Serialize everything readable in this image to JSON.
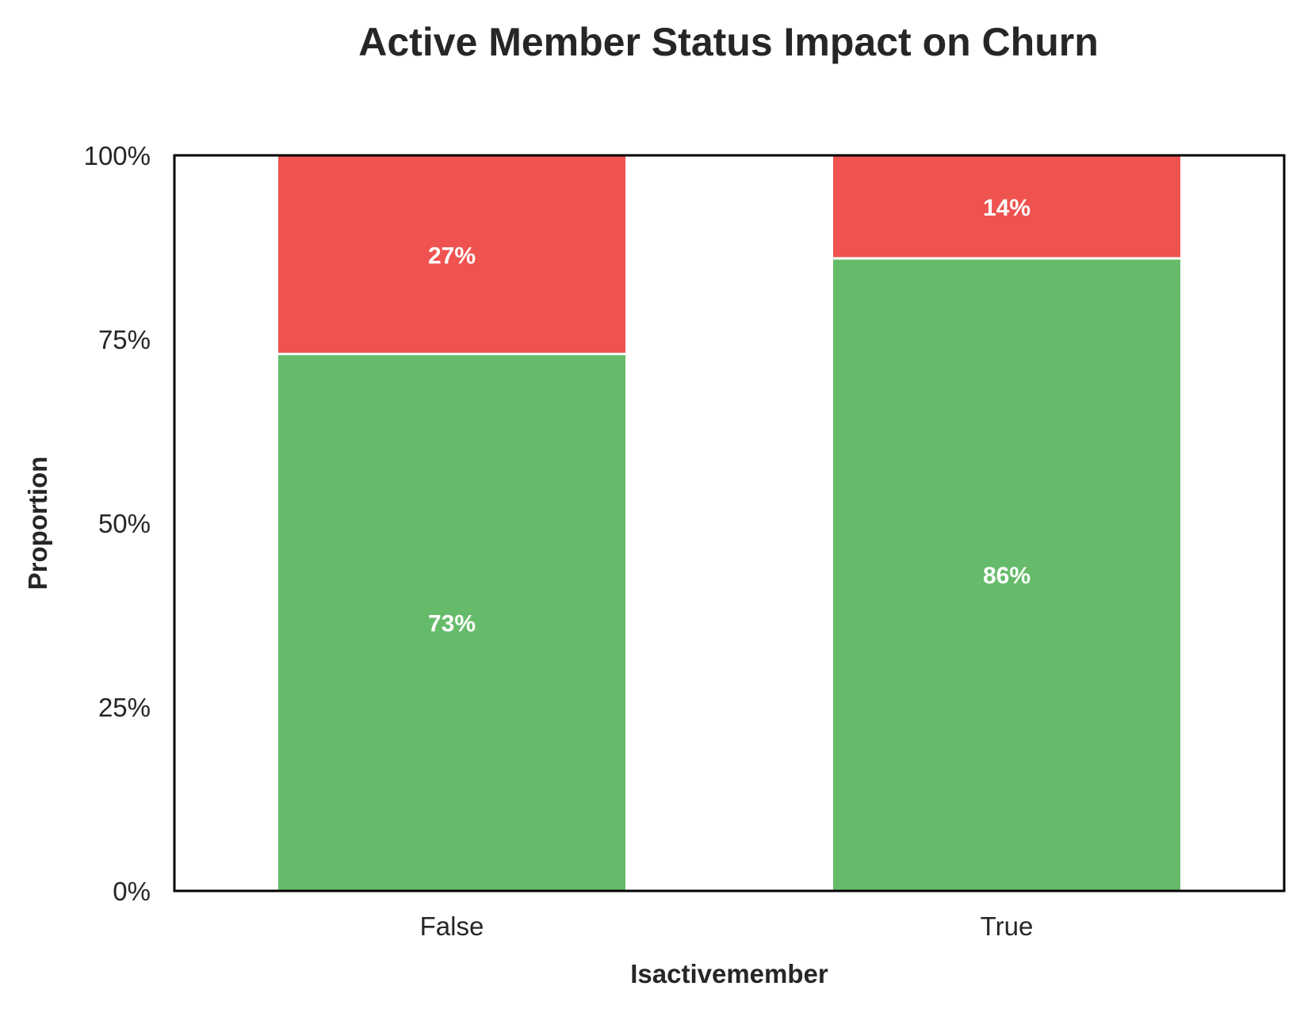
{
  "chart_data": {
    "type": "bar",
    "stacked": true,
    "normalized": true,
    "title": "Active Member Status Impact on Churn",
    "xlabel": "Isactivemember",
    "ylabel": "Proportion",
    "categories": [
      "False",
      "True"
    ],
    "ylim": [
      0,
      1
    ],
    "yticks": [
      0,
      0.25,
      0.5,
      0.75,
      1.0
    ],
    "ytick_labels": [
      "0%",
      "25%",
      "50%",
      "75%",
      "100%"
    ],
    "grid": false,
    "legend": false,
    "series": [
      {
        "values": [
          0.73,
          0.86
        ],
        "labels": [
          "73%",
          "86%"
        ],
        "color": "#66bb6a"
      },
      {
        "values": [
          0.27,
          0.14
        ],
        "labels": [
          "27%",
          "14%"
        ],
        "color": "#ef5350"
      }
    ]
  }
}
